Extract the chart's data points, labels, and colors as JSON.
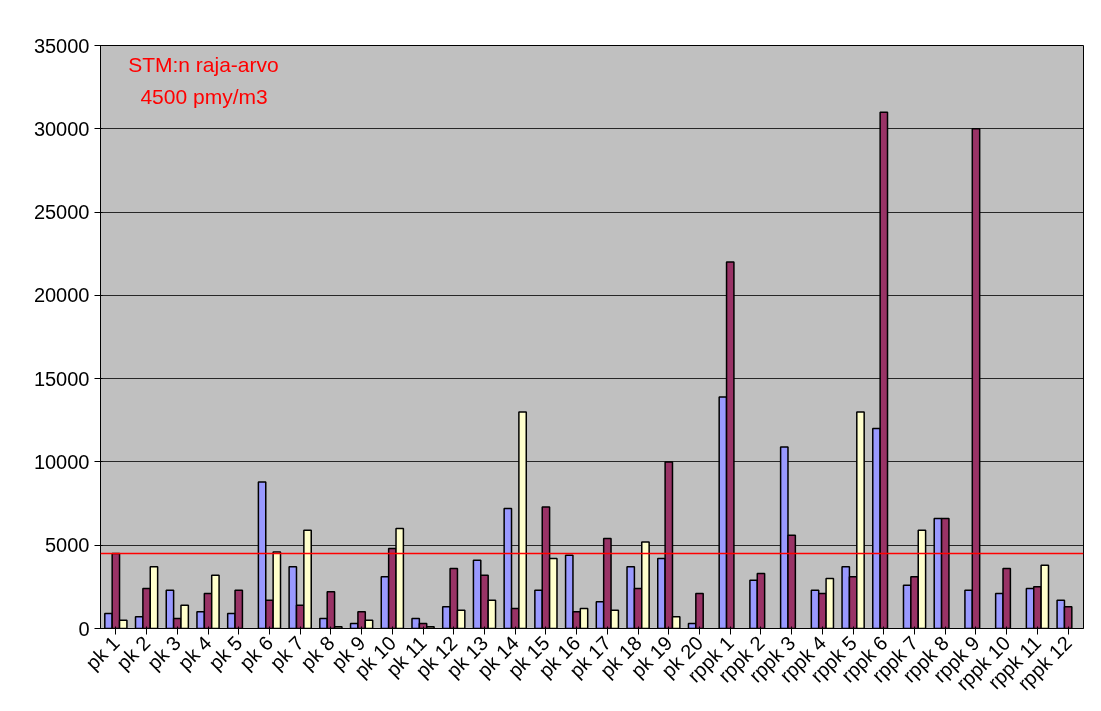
{
  "chart_data": {
    "type": "bar",
    "categories": [
      "pk 1",
      "pk 2",
      "pk 3",
      "pk 4",
      "pk 5",
      "pk 6",
      "pk 7",
      "pk 8",
      "pk 9",
      "pk 10",
      "pk 11",
      "pk 12",
      "pk 13",
      "pk 14",
      "pk 15",
      "pk 16",
      "pk 17",
      "pk 18",
      "pk 19",
      "pk 20",
      "rppk 1",
      "rppk 2",
      "rppk 3",
      "rppk 4",
      "rppk 5",
      "rppk 6",
      "rppk 7",
      "rppk 8",
      "rppk 9",
      "rppk 10",
      "rppk 11",
      "rppk 12"
    ],
    "series": [
      {
        "color": "#9999ff",
        "values": [
          900,
          700,
          2300,
          1000,
          900,
          8800,
          3700,
          600,
          300,
          3100,
          600,
          1300,
          4100,
          7200,
          2300,
          4400,
          1600,
          3700,
          4200,
          300,
          13900,
          2900,
          10900,
          2300,
          3700,
          12000,
          2600,
          6600,
          2300,
          2100,
          2400,
          1700
        ]
      },
      {
        "color": "#993366",
        "values": [
          4500,
          2400,
          600,
          2100,
          2300,
          1700,
          1400,
          2200,
          1000,
          4800,
          300,
          3600,
          3200,
          1200,
          7300,
          1000,
          5400,
          2400,
          10000,
          2100,
          22000,
          3300,
          5600,
          2100,
          3100,
          31000,
          3100,
          6600,
          30000,
          3600,
          2500,
          1300
        ]
      },
      {
        "color": "#ffffcc",
        "values": [
          500,
          3700,
          1400,
          3200,
          null,
          4600,
          5900,
          100,
          500,
          6000,
          100,
          1100,
          1700,
          13000,
          4200,
          1200,
          1100,
          5200,
          700,
          null,
          null,
          null,
          null,
          3000,
          13000,
          null,
          5900,
          null,
          null,
          null,
          3800,
          null
        ]
      }
    ],
    "ylim": [
      0,
      35000
    ],
    "yticks": [
      0,
      5000,
      10000,
      15000,
      20000,
      25000,
      30000,
      35000
    ],
    "grid": "y",
    "ref_lines": [
      {
        "axis": "y",
        "value": 4500,
        "label": "STM:n raja-arvo\n4500 pmy/m3",
        "color": "#ff0000"
      }
    ]
  }
}
